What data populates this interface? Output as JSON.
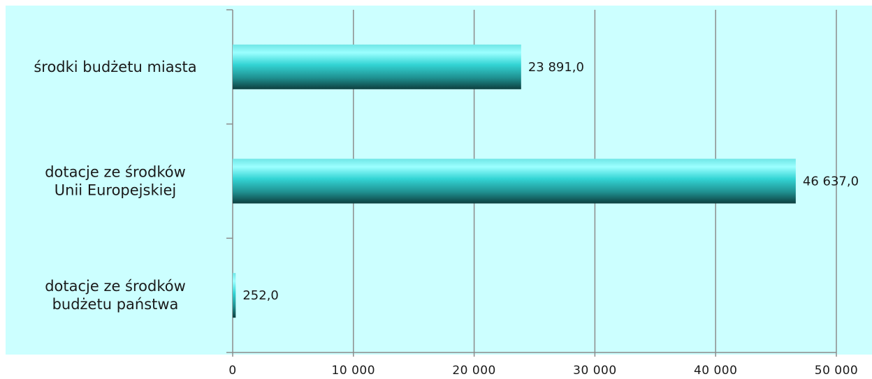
{
  "chart_data": {
    "type": "bar",
    "orientation": "horizontal",
    "title": "",
    "xlabel": "",
    "ylabel": "",
    "categories": [
      [
        "środki budżetu miasta"
      ],
      [
        "dotacje ze środków",
        "Unii Europejskiej"
      ],
      [
        "dotacje ze środków",
        "budżetu państwa"
      ]
    ],
    "values": [
      23891,
      46637,
      252
    ],
    "data_labels": [
      "23 891,0",
      "46 637,0",
      "252,0"
    ],
    "xlim": [
      0,
      50000
    ],
    "xticks": [
      0,
      10000,
      20000,
      30000,
      40000,
      50000
    ],
    "xtick_labels": [
      "0",
      "10 000",
      "20 000",
      "30 000",
      "40 000",
      "50 000"
    ],
    "grid": true,
    "legend": "none",
    "colors": {
      "plot_background": "#ccffff",
      "bar_light": "#7ff5f5",
      "bar_mid": "#2ec9c9",
      "bar_dark": "#0f4f4f",
      "gridline": "#8c8c8c"
    }
  }
}
